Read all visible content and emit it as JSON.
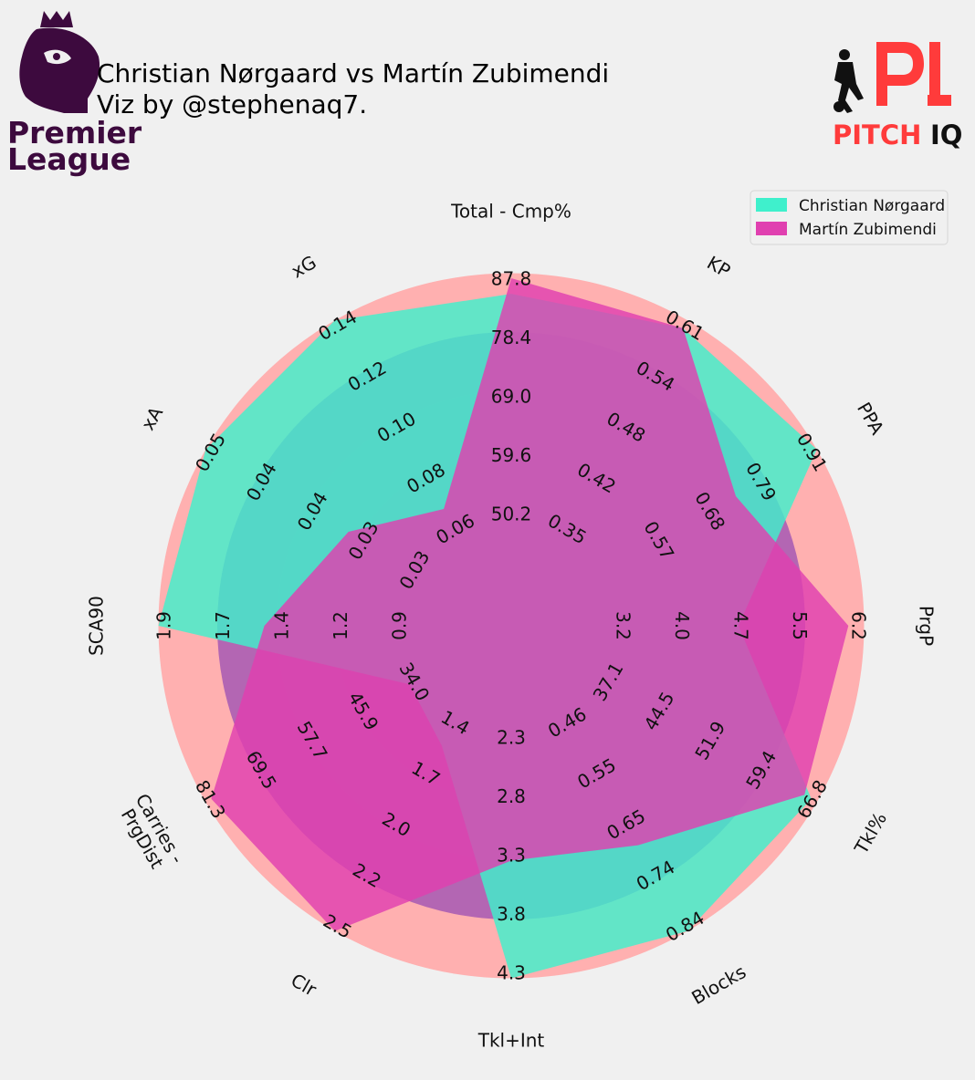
{
  "header": {
    "title_line1": "Christian Nørgaard vs Martín Zubimendi",
    "title_line2": "Viz by @stephenaq7."
  },
  "logos": {
    "left": {
      "line1": "Premier",
      "line2": "League",
      "icon": "lion-crown-icon"
    },
    "right": {
      "word1": "PITCH",
      "word2": "IQ",
      "icon": "footballer-icon",
      "mark": "P1"
    }
  },
  "colors": {
    "background": "#f0f0f0",
    "outer_ring": "#ffb0b0",
    "inner_rings": "#b366b3",
    "player1": "#3ff0cc",
    "player2": "#e040b0"
  },
  "chart_data": {
    "type": "radar",
    "parameters": [
      "Total - Cmp%",
      "KP",
      "PPA",
      "PrgP",
      "Tkl%",
      "Blocks",
      "Tkl+Int",
      "Clr",
      "Carries -\nPrgDist",
      "SCA90",
      "xA",
      "xG"
    ],
    "ticks": [
      [
        "50.2",
        "59.6",
        "69.0",
        "78.4",
        "87.8"
      ],
      [
        "0.35",
        "0.42",
        "0.48",
        "0.54",
        "0.61"
      ],
      [
        "0.57",
        "0.68",
        "0.79",
        "0.91"
      ],
      [
        "3.2",
        "4.0",
        "4.7",
        "5.5",
        "6.2"
      ],
      [
        "37.1",
        "44.5",
        "51.9",
        "59.4",
        "66.8"
      ],
      [
        "0.46",
        "0.55",
        "0.65",
        "0.74",
        "0.84"
      ],
      [
        "2.3",
        "2.8",
        "3.3",
        "3.8",
        "4.3"
      ],
      [
        "1.4",
        "1.7",
        "2.0",
        "2.2",
        "2.5"
      ],
      [
        "34.0",
        "45.9",
        "57.7",
        "69.5",
        "81.3"
      ],
      [
        "0.9",
        "1.2",
        "1.4",
        "1.7",
        "1.9"
      ],
      [
        "0.03",
        "0.03",
        "0.04",
        "0.04",
        "0.05"
      ],
      [
        "0.06",
        "0.08",
        "0.10",
        "0.12",
        "0.14"
      ]
    ],
    "series": [
      {
        "name": "Christian Nørgaard",
        "values": [
          84.5,
          0.6,
          0.96,
          4.6,
          66.0,
          0.86,
          4.4,
          1.5,
          34.0,
          1.95,
          0.05,
          0.146
        ]
      },
      {
        "name": "Martín Zubimendi",
        "values": [
          87.0,
          0.6,
          0.73,
          6.0,
          65.0,
          0.68,
          3.3,
          2.5,
          80.0,
          1.45,
          0.036,
          0.066
        ]
      }
    ],
    "legend_position": "top-right"
  }
}
